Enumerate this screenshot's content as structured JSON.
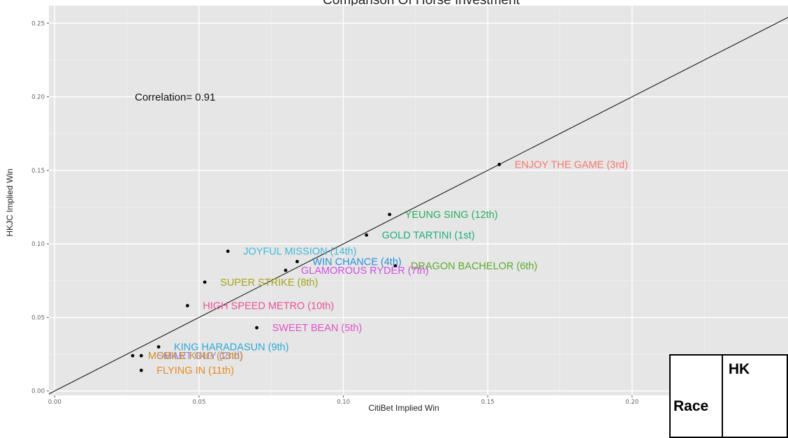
{
  "chart_data": {
    "type": "scatter",
    "title": "Comparison Of Horse Investment",
    "xlabel": "CitiBet Implied Win",
    "ylabel": "HKJC Implied Win",
    "xlim": [
      -0.002,
      0.254
    ],
    "ylim": [
      -0.003,
      0.262
    ],
    "x_ticks": [
      0.0,
      0.05,
      0.1,
      0.15,
      0.2
    ],
    "x_tick_labels": [
      "0.00",
      "0.05",
      "0.10",
      "0.15",
      "0.20"
    ],
    "y_ticks": [
      0.0,
      0.05,
      0.1,
      0.15,
      0.2,
      0.25
    ],
    "y_tick_labels": [
      "0.00",
      "0.05",
      "0.10",
      "0.15",
      "0.20",
      "0.25"
    ],
    "annotation": "Correlation= 0.91",
    "reference_line": "y = x",
    "background_color": "#e6e6e6",
    "grid": true,
    "points": [
      {
        "label": "ENJOY THE GAME (3rd)",
        "x": 0.154,
        "y": 0.154,
        "color": "#f8766d"
      },
      {
        "label": "YEUNG SING (12th)",
        "x": 0.116,
        "y": 0.12,
        "color": "#27ae60"
      },
      {
        "label": "GOLD TARTINI (1st)",
        "x": 0.108,
        "y": 0.106,
        "color": "#1fae7a"
      },
      {
        "label": "JOYFUL MISSION (14th)",
        "x": 0.06,
        "y": 0.095,
        "color": "#3fb8d8"
      },
      {
        "label": "WIN CHANCE (4th)",
        "x": 0.084,
        "y": 0.088,
        "color": "#2a8fd8"
      },
      {
        "label": "DRAGON BACHELOR (6th)",
        "x": 0.118,
        "y": 0.085,
        "color": "#5aaa2a"
      },
      {
        "label": "GLAMOROUS RYDER (7th)",
        "x": 0.08,
        "y": 0.082,
        "color": "#d24fe0"
      },
      {
        "label": "SUPER STRIKE (8th)",
        "x": 0.052,
        "y": 0.074,
        "color": "#a3a51a"
      },
      {
        "label": "HIGH SPEED METRO (10th)",
        "x": 0.046,
        "y": 0.058,
        "color": "#ea4f9a"
      },
      {
        "label": "SWEET BEAN (5th)",
        "x": 0.07,
        "y": 0.043,
        "color": "#e053c8"
      },
      {
        "label": "KING HARADASUN (9th)",
        "x": 0.036,
        "y": 0.03,
        "color": "#2aa8d8"
      },
      {
        "label": "SMART GUY (2nd)",
        "x": 0.03,
        "y": 0.024,
        "color": "#a17de8"
      },
      {
        "label": "MOBILE KING (13th)",
        "x": 0.027,
        "y": 0.024,
        "color": "#c7932a"
      },
      {
        "label": "FLYING IN (11th)",
        "x": 0.03,
        "y": 0.014,
        "color": "#e68a1f"
      }
    ]
  },
  "table": {
    "header_race": "Race",
    "header_hk": "HK"
  }
}
